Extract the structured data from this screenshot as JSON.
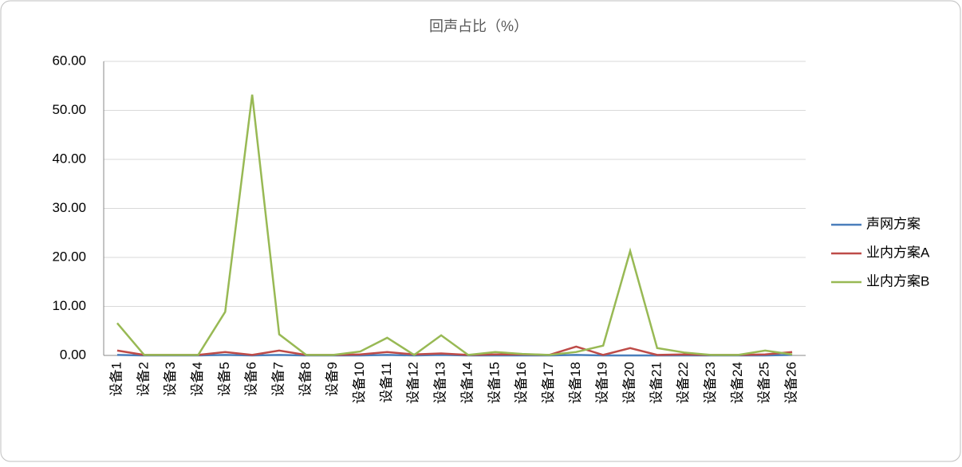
{
  "chart_data": {
    "type": "line",
    "title": "回声占比（%）",
    "categories": [
      "设备1",
      "设备2",
      "设备3",
      "设备4",
      "设备5",
      "设备6",
      "设备7",
      "设备8",
      "设备9",
      "设备10",
      "设备11",
      "设备12",
      "设备13",
      "设备14",
      "设备15",
      "设备16",
      "设备17",
      "设备18",
      "设备19",
      "设备20",
      "设备21",
      "设备22",
      "设备23",
      "设备24",
      "设备25",
      "设备26"
    ],
    "series": [
      {
        "name": "声网方案",
        "color": "#4a7ebb",
        "values": [
          0.1,
          0.0,
          0.0,
          0.0,
          0.1,
          0.0,
          0.1,
          0.0,
          0.0,
          0.0,
          0.1,
          0.0,
          0.1,
          0.0,
          0.0,
          0.0,
          0.0,
          0.1,
          0.0,
          0.0,
          0.0,
          0.0,
          0.0,
          0.0,
          0.0,
          0.1
        ]
      },
      {
        "name": "业内方案A",
        "color": "#be4b48",
        "values": [
          1.0,
          0.1,
          0.1,
          0.1,
          0.7,
          0.1,
          1.0,
          0.1,
          0.1,
          0.2,
          0.7,
          0.2,
          0.4,
          0.1,
          0.2,
          0.2,
          0.1,
          1.8,
          0.1,
          1.5,
          0.1,
          0.2,
          0.1,
          0.1,
          0.2,
          0.7
        ]
      },
      {
        "name": "业内方案B",
        "color": "#98b954",
        "values": [
          6.6,
          0.1,
          0.1,
          0.1,
          8.9,
          53.2,
          4.3,
          0.1,
          0.1,
          0.8,
          3.6,
          0.1,
          4.1,
          0.1,
          0.7,
          0.3,
          0.1,
          0.7,
          2.0,
          21.3,
          1.5,
          0.6,
          0.1,
          0.1,
          1.0,
          0.2
        ]
      }
    ],
    "ylim": [
      0,
      60
    ],
    "yticks": [
      {
        "value": 0,
        "label": "0.00"
      },
      {
        "value": 10,
        "label": "10.00"
      },
      {
        "value": 20,
        "label": "20.00"
      },
      {
        "value": 30,
        "label": "30.00"
      },
      {
        "value": 40,
        "label": "40.00"
      },
      {
        "value": 50,
        "label": "50.00"
      },
      {
        "value": 60,
        "label": "60.00"
      }
    ],
    "grid": true,
    "legend": "right"
  }
}
